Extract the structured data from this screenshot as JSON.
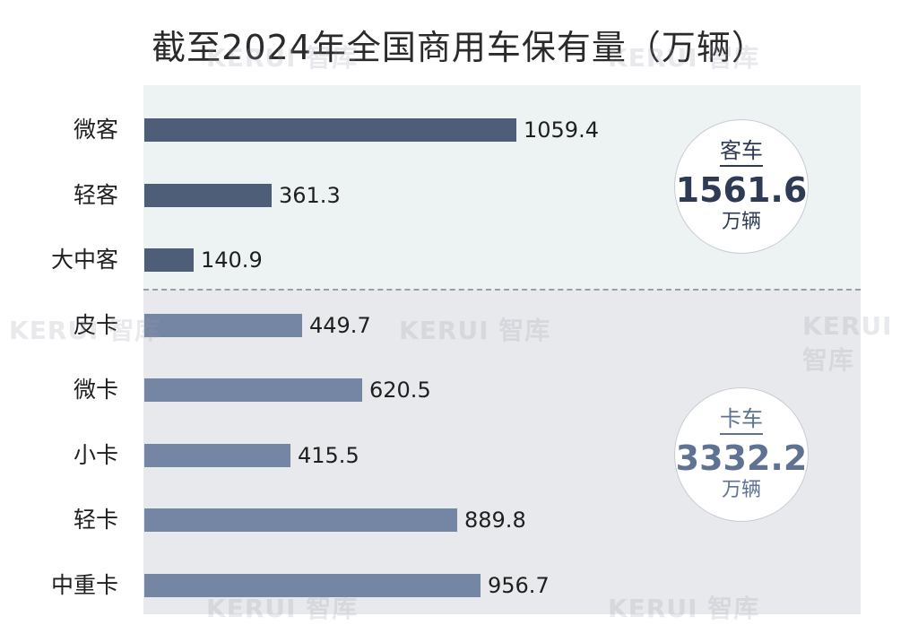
{
  "chart_data": {
    "type": "bar",
    "orientation": "horizontal",
    "title": "截至2024年全国商用车保有量（万辆）",
    "categories": [
      "微客",
      "轻客",
      "大中客",
      "皮卡",
      "微卡",
      "小卡",
      "轻卡",
      "中重卡"
    ],
    "values": [
      1059.4,
      361.3,
      140.9,
      449.7,
      620.5,
      415.5,
      889.8,
      956.7
    ],
    "value_labels": [
      "1059.4",
      "361.3",
      "140.9",
      "449.7",
      "620.5",
      "415.5",
      "889.8",
      "956.7"
    ],
    "groups": [
      {
        "name": "客车",
        "total": "1561.6",
        "unit": "万辆",
        "categories": [
          "微客",
          "轻客",
          "大中客"
        ],
        "color": "#4f5e78"
      },
      {
        "name": "卡车",
        "total": "3332.2",
        "unit": "万辆",
        "categories": [
          "皮卡",
          "微卡",
          "小卡",
          "轻卡",
          "中重卡"
        ],
        "color": "#7586a4"
      }
    ],
    "xlim": [
      0,
      1059.4
    ],
    "grid": false,
    "legend": "none"
  },
  "watermark": "KERUI 智库",
  "colors": {
    "passenger_bar": "#4f5e78",
    "truck_bar": "#7586a4",
    "passenger_panel": "#edf2f3",
    "truck_panel": "#e8e9ec"
  }
}
